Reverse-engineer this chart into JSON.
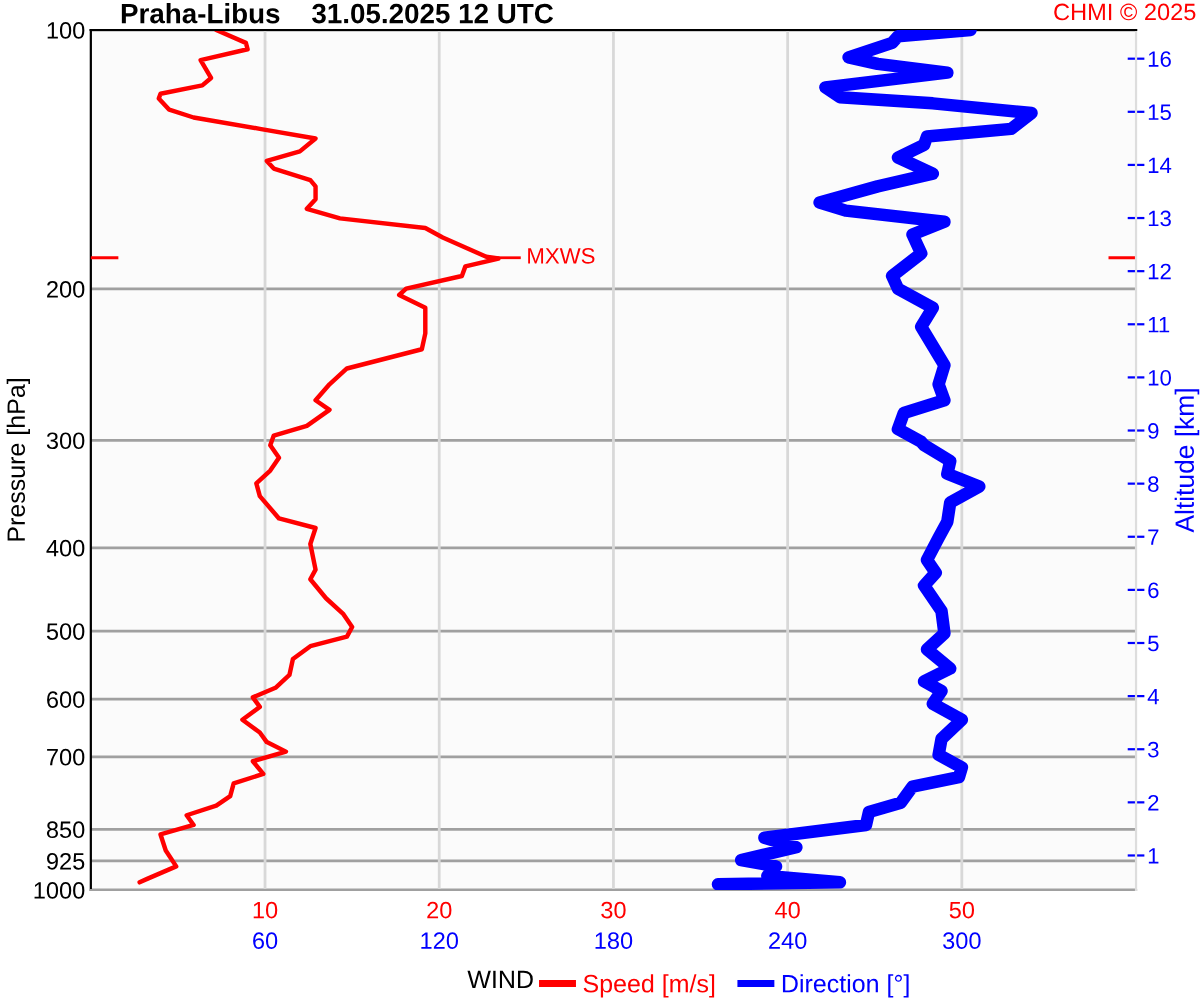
{
  "chart_data": {
    "type": "line",
    "orientation": "horizontal",
    "title": "Praha-Libus    31.05.2025 12 UTC",
    "xlabel": "WIND",
    "ylabel": "Pressure [hPa]",
    "y2label": "Altitude [km]",
    "annotations": [
      "CHMI © 2025"
    ],
    "log": "y",
    "grid": true,
    "legend": "bottom",
    "xlim": [
      0,
      60
    ],
    "xticks": [
      10,
      20,
      30,
      40,
      50
    ],
    "x2lim": [
      0,
      360
    ],
    "x2ticks": [
      60,
      120,
      180,
      240,
      300
    ],
    "ylim": [
      1000,
      100
    ],
    "yticks": [
      100,
      200,
      300,
      400,
      500,
      600,
      700,
      850,
      925,
      1000
    ],
    "y2lim": [
      0.35,
      16.54
    ],
    "y2ticks": [
      1,
      2,
      3,
      4,
      5,
      6,
      7,
      8,
      9,
      10,
      11,
      12,
      13,
      14,
      15,
      16
    ],
    "ref_lines": [
      {
        "axis": "y",
        "value": 184,
        "label": "MXWS",
        "color": "#ff0000"
      }
    ],
    "series": [
      {
        "name": "Speed [m/s]",
        "color": "#ff0000",
        "x": [
          100,
          103.5,
          105.3,
          108.4,
          113.7,
          116.0,
          118.6,
          120.1,
          123.8,
          126.4,
          130.3,
          133.7,
          138.4,
          142.0,
          144.9,
          149.5,
          152.0,
          157.3,
          161.4,
          165.6,
          169.9,
          174.3,
          183.5,
          184.4,
          188.3,
          193.2,
          199.9,
          203.3,
          210.4,
          225.3,
          235.1,
          247.5,
          258.2,
          269.5,
          276.5,
          288.6,
          296.2,
          303.9,
          314.4,
          325.3,
          336.6,
          348.3,
          369.8,
          379.4,
          396.0,
          424.1,
          435.2,
          457.9,
          477.9,
          494.5,
          507.4,
          520.6,
          538.8,
          562.3,
          581.9,
          597.0,
          612.5,
          633.9,
          655.9,
          673.0,
          690.4,
          708.4,
          732.9,
          751.6,
          777.7,
          797.9,
          818.6,
          840.1,
          861.8,
          899.5,
          938.7,
          971.4,
          979.7
        ],
        "values": [
          7.2,
          8.9,
          9.0,
          6.3,
          6.9,
          6.4,
          4.0,
          3.9,
          4.5,
          5.9,
          9.7,
          12.9,
          12.0,
          10.1,
          10.5,
          12.6,
          12.9,
          12.9,
          12.4,
          14.3,
          19.2,
          20.2,
          22.7,
          23.4,
          21.5,
          21.3,
          18.1,
          17.7,
          19.2,
          19.2,
          19.0,
          14.7,
          13.7,
          12.9,
          13.7,
          12.4,
          10.5,
          10.3,
          10.8,
          10.3,
          9.5,
          9.7,
          10.8,
          12.9,
          12.6,
          12.9,
          12.6,
          13.5,
          14.5,
          15.0,
          14.7,
          12.6,
          11.6,
          11.4,
          10.6,
          9.3,
          9.7,
          8.7,
          9.7,
          10.1,
          11.2,
          9.3,
          9.9,
          8.2,
          8.0,
          7.2,
          5.5,
          5.9,
          4.0,
          4.3,
          4.9,
          3.2,
          2.8
        ]
      },
      {
        "name": "Direction [°]",
        "color": "#0000ff",
        "axis": "x2",
        "x": [
          100,
          101.7,
          103.5,
          107.6,
          109.5,
          112.1,
          116.6,
          119.7,
          121.7,
          124.9,
          130.3,
          133.0,
          136.0,
          140.7,
          146.9,
          152.0,
          158.7,
          162.2,
          167.1,
          172.9,
          181.9,
          193.2,
          199.9,
          210.4,
          221.4,
          233.1,
          245.4,
          258.2,
          269.5,
          278.9,
          291.1,
          301.2,
          303.9,
          317.1,
          328.1,
          339.5,
          354.3,
          373.0,
          389.3,
          413.3,
          427.6,
          442.6,
          473.9,
          503.0,
          525.0,
          552.6,
          572.0,
          586.9,
          607.3,
          633.9,
          667.2,
          696.3,
          720.4,
          739.1,
          758.3,
          791.5,
          811.7,
          840.1,
          869.3,
          891.9,
          923.0,
          938.7,
          962.9,
          979.7,
          984.7
        ],
        "values": [
          303,
          278,
          276,
          261,
          271,
          295,
          253,
          258,
          290,
          324,
          317,
          288,
          287,
          278,
          290,
          271,
          251,
          260,
          294,
          283,
          286,
          276,
          278,
          290,
          286,
          290,
          294,
          292,
          294,
          280,
          278,
          286,
          287,
          296,
          295,
          306,
          296,
          295,
          292,
          288,
          291,
          287,
          293,
          294,
          288,
          296,
          287,
          293,
          290,
          300,
          293,
          292,
          300,
          299,
          283,
          279,
          268,
          267,
          232,
          243,
          224,
          236,
          233,
          258,
          216
        ]
      }
    ]
  }
}
